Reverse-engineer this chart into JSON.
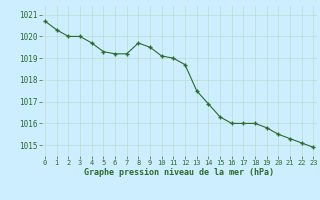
{
  "x": [
    0,
    1,
    2,
    3,
    4,
    5,
    6,
    7,
    8,
    9,
    10,
    11,
    12,
    13,
    14,
    15,
    16,
    17,
    18,
    19,
    20,
    21,
    22,
    23
  ],
  "y": [
    1020.7,
    1020.3,
    1020.0,
    1020.0,
    1019.7,
    1019.3,
    1019.2,
    1019.2,
    1019.7,
    1019.5,
    1019.1,
    1019.0,
    1018.7,
    1017.5,
    1016.9,
    1016.3,
    1016.0,
    1016.0,
    1016.0,
    1015.8,
    1015.5,
    1015.3,
    1015.1,
    1014.9
  ],
  "line_color": "#2d6a2d",
  "marker": "+",
  "bg_color": "#cceeff",
  "grid_color": "#bbddcc",
  "xlabel": "Graphe pression niveau de la mer (hPa)",
  "xlabel_color": "#2d6a2d",
  "tick_color": "#2d6a2d",
  "ylim": [
    1014.5,
    1021.4
  ],
  "yticks": [
    1015,
    1016,
    1017,
    1018,
    1019,
    1020,
    1021
  ],
  "xticks": [
    0,
    1,
    2,
    3,
    4,
    5,
    6,
    7,
    8,
    9,
    10,
    11,
    12,
    13,
    14,
    15,
    16,
    17,
    18,
    19,
    20,
    21,
    22,
    23
  ],
  "xlim": [
    -0.3,
    23.3
  ]
}
